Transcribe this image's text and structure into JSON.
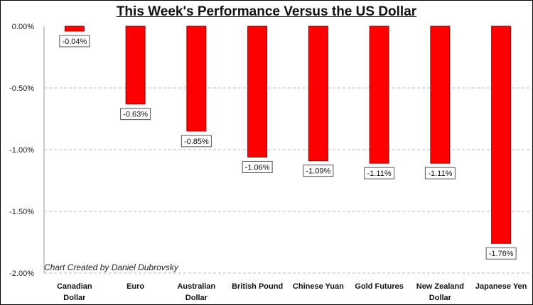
{
  "chart_data": {
    "type": "bar",
    "title": "This Week's Performance Versus the US Dollar",
    "annotation": "Chart Created by Daniel Dubrovsky",
    "categories": [
      [
        "Canadian",
        "Dollar"
      ],
      [
        "Euro"
      ],
      [
        "Australian",
        "Dollar"
      ],
      [
        "British Pound"
      ],
      [
        "Chinese Yuan"
      ],
      [
        "Gold Futures"
      ],
      [
        "New Zealand",
        "Dollar"
      ],
      [
        "Japanese Yen"
      ]
    ],
    "values": [
      -0.04,
      -0.63,
      -0.85,
      -1.06,
      -1.09,
      -1.11,
      -1.11,
      -1.76
    ],
    "data_labels": [
      "-0.04%",
      "-0.63%",
      "-0.85%",
      "-1.06%",
      "-1.09%",
      "-1.11%",
      "-1.11%",
      "-1.76%"
    ],
    "yticks": [
      0,
      -0.5,
      -1.0,
      -1.5,
      -2.0
    ],
    "ytick_labels": [
      "0.00%",
      "-0.50%",
      "-1.00%",
      "-1.50%",
      "-2.00%"
    ],
    "ylim": [
      -2.0,
      0
    ],
    "grid": true,
    "bar_color": "#ff0000",
    "bar_edge_color": "#8b0000"
  }
}
